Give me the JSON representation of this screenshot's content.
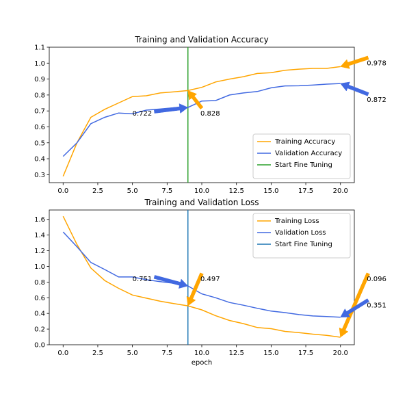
{
  "chart_data": [
    {
      "type": "line",
      "title": "Training and Validation Accuracy",
      "xlabel": "",
      "ylabel": "",
      "xlim": [
        -1,
        21
      ],
      "ylim": [
        0.25,
        1.1
      ],
      "xticks": [
        0.0,
        2.5,
        5.0,
        7.5,
        10.0,
        12.5,
        15.0,
        17.5,
        20.0
      ],
      "xtick_labels": [
        "0.0",
        "2.5",
        "5.0",
        "7.5",
        "10.0",
        "12.5",
        "15.0",
        "17.5",
        "20.0"
      ],
      "yticks": [
        0.3,
        0.4,
        0.5,
        0.6,
        0.7,
        0.8,
        0.9,
        1.0,
        1.1
      ],
      "ytick_labels": [
        "0.3",
        "0.4",
        "0.5",
        "0.6",
        "0.7",
        "0.8",
        "0.9",
        "1.0",
        "1.1"
      ],
      "legend_position": "lower right",
      "x": [
        0,
        1,
        2,
        3,
        4,
        5,
        6,
        7,
        8,
        9,
        10,
        11,
        12,
        13,
        14,
        15,
        16,
        17,
        18,
        19,
        20
      ],
      "series": [
        {
          "name": "Training Accuracy",
          "color": "#ffa500",
          "values": [
            0.29,
            0.5,
            0.66,
            0.71,
            0.75,
            0.79,
            0.795,
            0.813,
            0.82,
            0.828,
            0.848,
            0.882,
            0.9,
            0.915,
            0.935,
            0.94,
            0.955,
            0.962,
            0.967,
            0.967,
            0.978
          ]
        },
        {
          "name": "Validation Accuracy",
          "color": "#4169e1",
          "values": [
            0.415,
            0.5,
            0.62,
            0.66,
            0.687,
            0.682,
            0.705,
            0.712,
            0.72,
            0.722,
            0.762,
            0.765,
            0.8,
            0.813,
            0.822,
            0.845,
            0.857,
            0.858,
            0.862,
            0.868,
            0.872
          ]
        }
      ],
      "vlines": [
        {
          "name": "Start Fine Tuning",
          "x": 9,
          "color": "#2ca02c"
        }
      ],
      "annotations": [
        {
          "text": "0.722",
          "x": 9,
          "y": 0.722,
          "text_x": 5.0,
          "text_y": 0.683,
          "color": "#4169e1"
        },
        {
          "text": "0.828",
          "x": 9,
          "y": 0.828,
          "text_x": 10.0,
          "text_y": 0.683,
          "color": "#ffa500"
        },
        {
          "text": "0.978",
          "x": 20,
          "y": 0.978,
          "text_x": 22.0,
          "text_y": 1.0,
          "color": "#ffa500"
        },
        {
          "text": "0.872",
          "x": 20,
          "y": 0.872,
          "text_x": 22.0,
          "text_y": 0.77,
          "color": "#4169e1"
        }
      ]
    },
    {
      "type": "line",
      "title": "Training and Validation Loss",
      "xlabel": "epoch",
      "ylabel": "",
      "xlim": [
        -1,
        21
      ],
      "ylim": [
        0.0,
        1.72
      ],
      "xticks": [
        0.0,
        2.5,
        5.0,
        7.5,
        10.0,
        12.5,
        15.0,
        17.5,
        20.0
      ],
      "xtick_labels": [
        "0.0",
        "2.5",
        "5.0",
        "7.5",
        "10.0",
        "12.5",
        "15.0",
        "17.5",
        "20.0"
      ],
      "yticks": [
        0.0,
        0.2,
        0.4,
        0.6,
        0.8,
        1.0,
        1.2,
        1.4,
        1.6
      ],
      "ytick_labels": [
        "0.0",
        "0.2",
        "0.4",
        "0.6",
        "0.8",
        "1.0",
        "1.2",
        "1.4",
        "1.6"
      ],
      "legend_position": "upper right",
      "x": [
        0,
        1,
        2,
        3,
        4,
        5,
        6,
        7,
        8,
        9,
        10,
        11,
        12,
        13,
        14,
        15,
        16,
        17,
        18,
        19,
        20
      ],
      "series": [
        {
          "name": "Training Loss",
          "color": "#ffa500",
          "values": [
            1.64,
            1.28,
            0.98,
            0.82,
            0.72,
            0.635,
            0.595,
            0.555,
            0.525,
            0.497,
            0.445,
            0.37,
            0.31,
            0.27,
            0.22,
            0.205,
            0.17,
            0.155,
            0.135,
            0.12,
            0.096
          ]
        },
        {
          "name": "Validation Loss",
          "color": "#4169e1",
          "values": [
            1.44,
            1.25,
            1.05,
            0.96,
            0.865,
            0.865,
            0.83,
            0.805,
            0.785,
            0.751,
            0.65,
            0.6,
            0.54,
            0.505,
            0.465,
            0.43,
            0.41,
            0.385,
            0.368,
            0.36,
            0.351
          ]
        }
      ],
      "vlines": [
        {
          "name": "Start Fine Tuning",
          "x": 9,
          "color": "#1f77b4"
        }
      ],
      "annotations": [
        {
          "text": "0.751",
          "x": 9,
          "y": 0.751,
          "text_x": 5.0,
          "text_y": 0.84,
          "color": "#4169e1"
        },
        {
          "text": "0.497",
          "x": 9,
          "y": 0.497,
          "text_x": 10.0,
          "text_y": 0.84,
          "color": "#ffa500"
        },
        {
          "text": "0.096",
          "x": 20,
          "y": 0.096,
          "text_x": 22.0,
          "text_y": 0.84,
          "color": "#ffa500"
        },
        {
          "text": "0.351",
          "x": 20,
          "y": 0.351,
          "text_x": 22.0,
          "text_y": 0.5,
          "color": "#4169e1"
        }
      ]
    }
  ]
}
